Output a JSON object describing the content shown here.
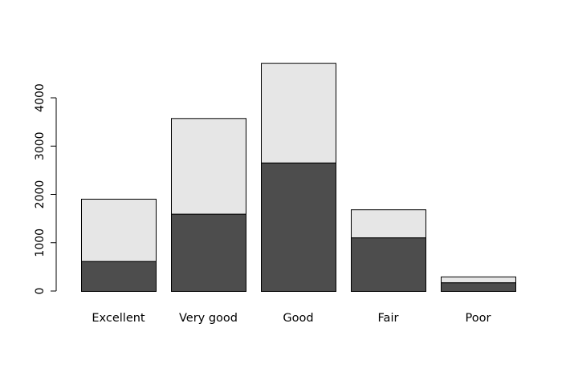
{
  "chart_data": {
    "type": "bar",
    "stacked": true,
    "title": "",
    "xlabel": "",
    "ylabel": "",
    "categories": [
      "Excellent",
      "Very good",
      "Good",
      "Fair",
      "Poor"
    ],
    "series": [
      {
        "color": "#4d4d4d",
        "values": [
          620,
          1600,
          2660,
          1110,
          180
        ]
      },
      {
        "color": "#e6e6e6",
        "values": [
          1290,
          1980,
          2060,
          580,
          120
        ]
      }
    ],
    "yticks": [
      0,
      1000,
      2000,
      3000,
      4000
    ],
    "ylim": [
      0,
      4720
    ],
    "grid": false,
    "legend": "none"
  }
}
